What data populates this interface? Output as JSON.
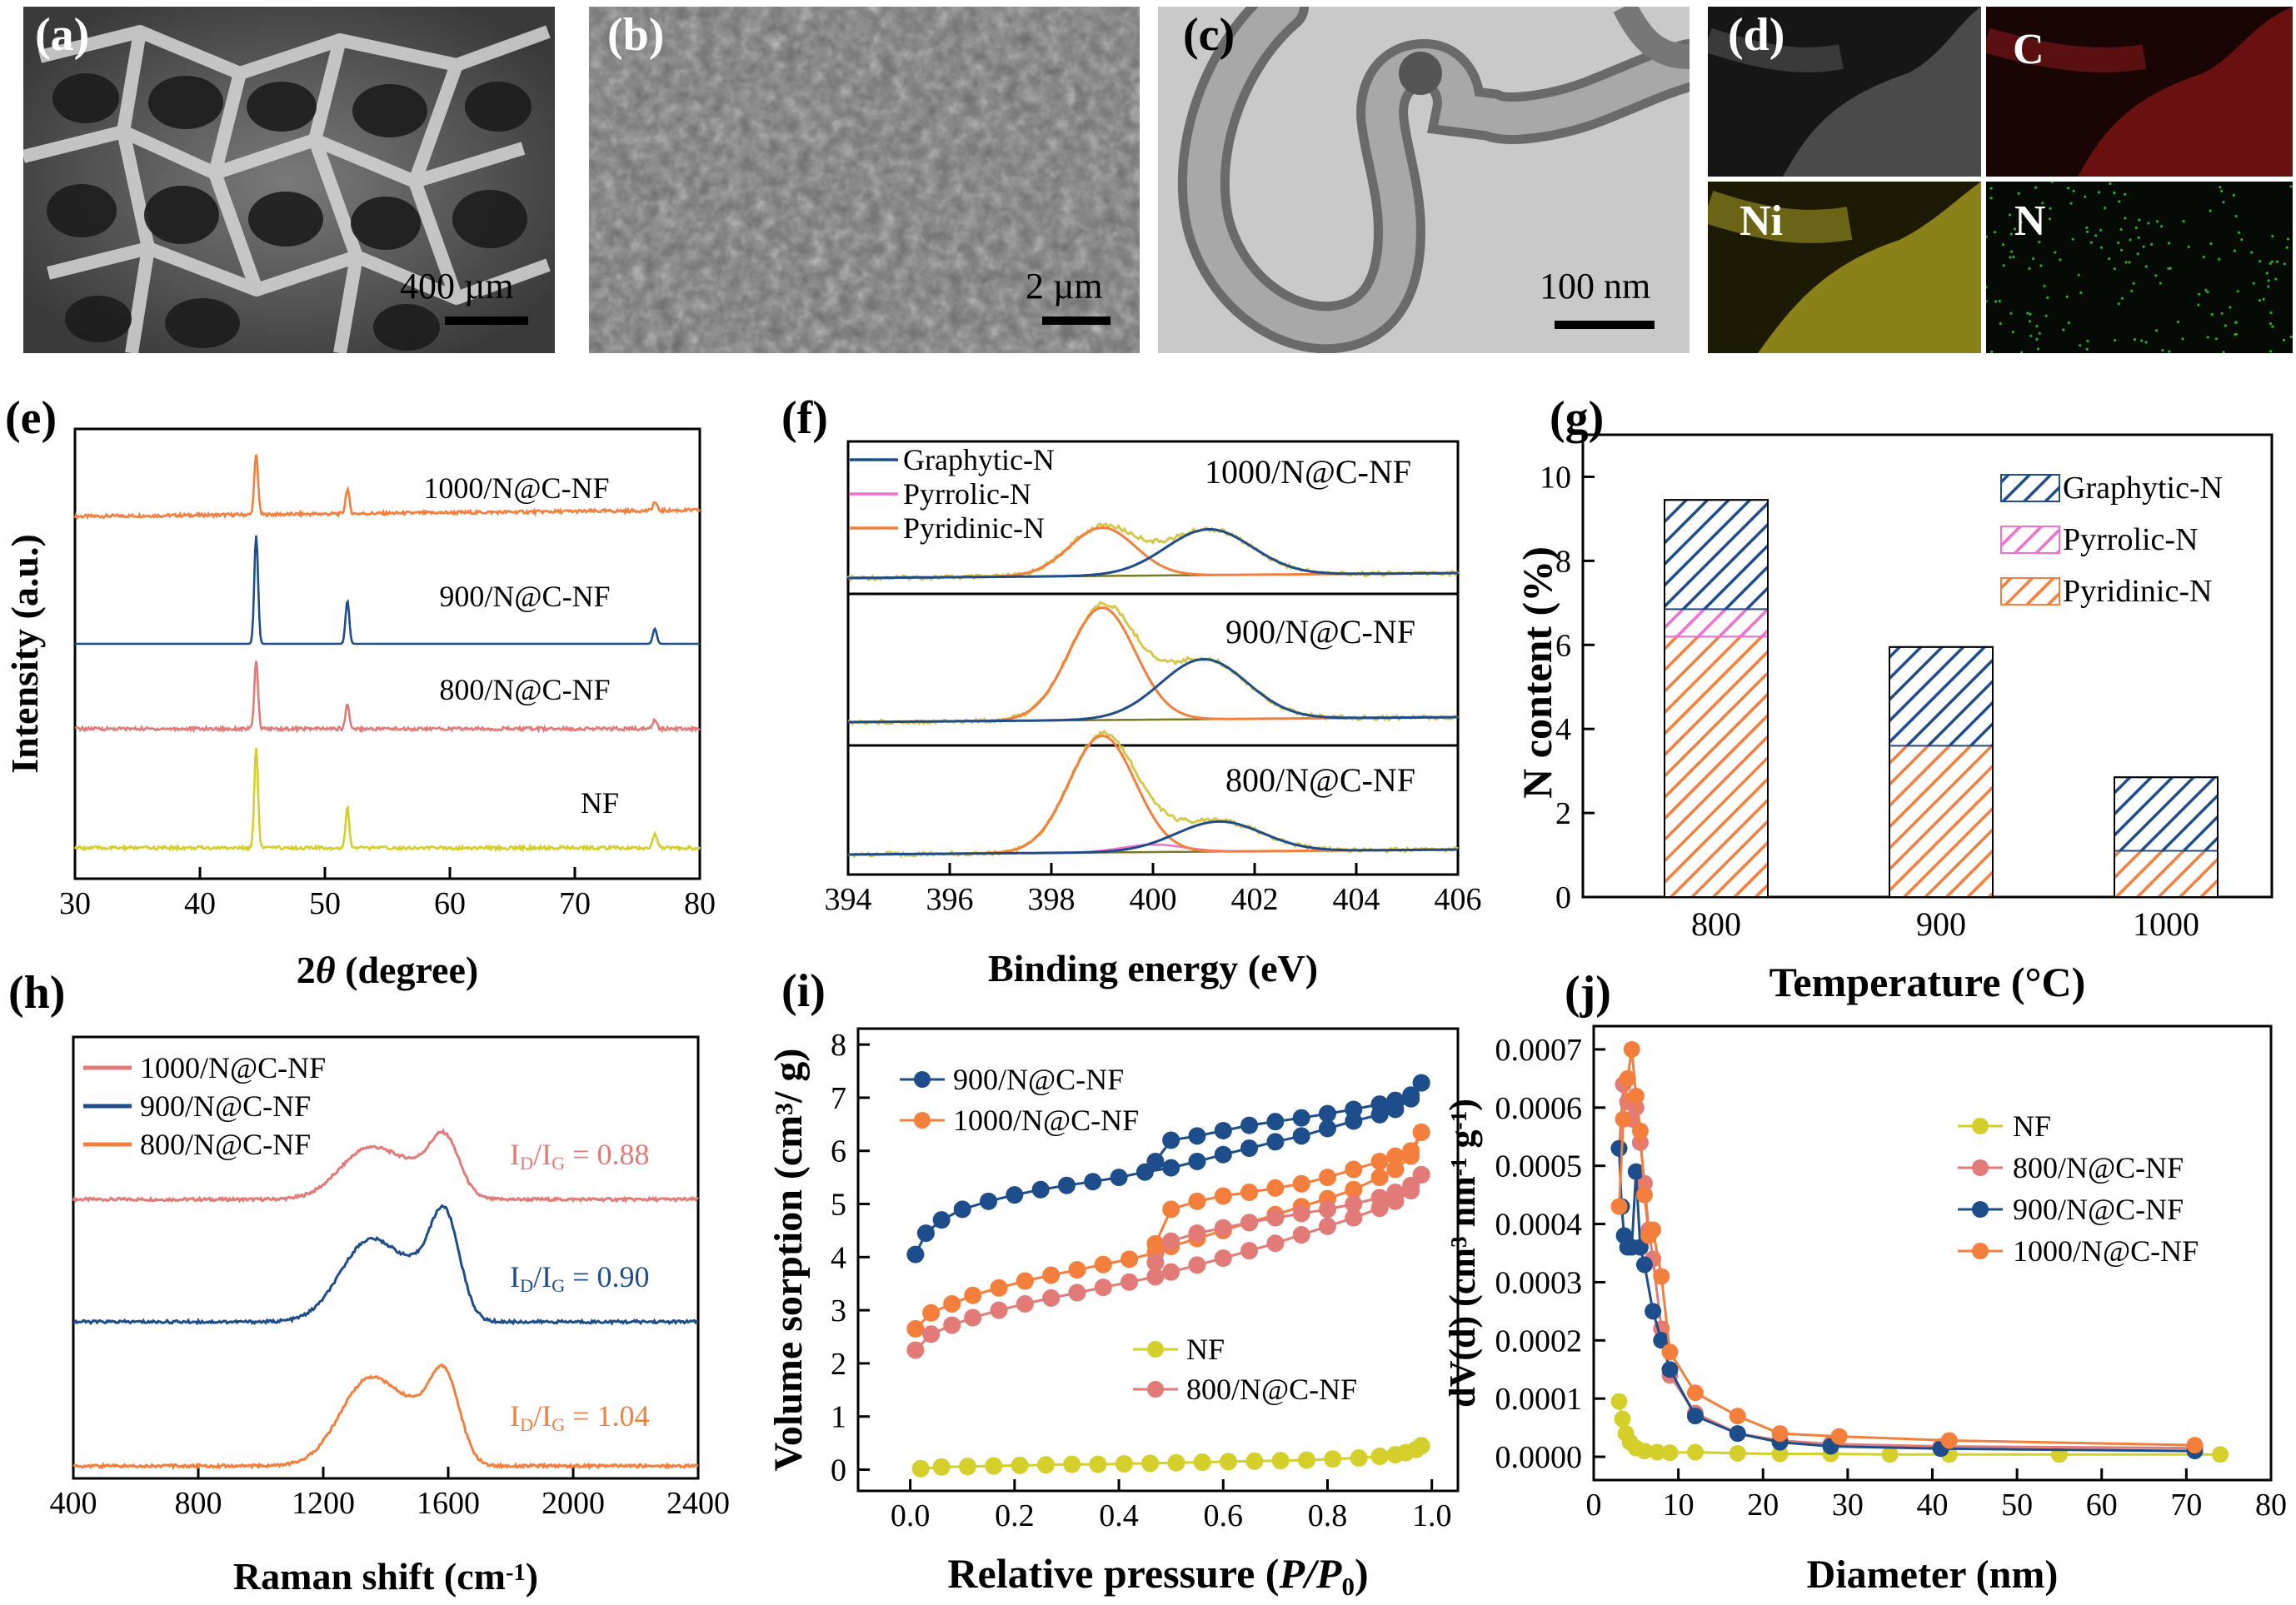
{
  "micrographs": [
    {
      "label": "(a)",
      "scale": "400 µm"
    },
    {
      "label": "(b)",
      "scale": "2 µm"
    },
    {
      "label": "(c)",
      "scale": "100 nm"
    }
  ],
  "mapping": {
    "label": "(d)",
    "elements": [
      "C",
      "Ni",
      "N"
    ]
  },
  "colors": {
    "nf": "#d4cf2a",
    "n800": "#e27a78",
    "n900": "#1d4d8b",
    "n1000": "#f47f3c",
    "pyrrolic": "#f06fd0",
    "baseline": "#7c7a24",
    "envelope": "#d4c84a"
  },
  "chart_data": [
    {
      "panel": "(e)",
      "type": "line",
      "xlabel": "2θ (degree)",
      "ylabel": "Intensity (a.u.)",
      "xlim": [
        30,
        80
      ],
      "xticks": [
        30,
        40,
        50,
        60,
        70,
        80
      ],
      "peaks": [
        44.5,
        51.8,
        76.4
      ],
      "series": [
        {
          "name": "1000/N@C-NF"
        },
        {
          "name": "900/N@C-NF"
        },
        {
          "name": "800/N@C-NF"
        },
        {
          "name": "NF"
        }
      ]
    },
    {
      "panel": "(f)",
      "type": "line",
      "xlabel": "Binding energy (eV)",
      "xlim": [
        394,
        406
      ],
      "xticks": [
        394,
        396,
        398,
        400,
        402,
        404,
        406
      ],
      "legend": [
        "Graphytic-N",
        "Pyrrolic-N",
        "Pyridinic-N"
      ],
      "subplots": [
        {
          "name": "1000/N@C-NF",
          "pyridinic_center": 399.0,
          "graphitic_center": 401.1
        },
        {
          "name": "900/N@C-NF",
          "pyridinic_center": 399.0,
          "graphitic_center": 401.0
        },
        {
          "name": "800/N@C-NF",
          "pyridinic_center": 399.0,
          "graphitic_center": 401.3,
          "pyrrolic_center": 400.0
        }
      ]
    },
    {
      "panel": "(g)",
      "type": "bar",
      "xlabel": "Temperature (°C)",
      "ylabel": "N content (%)",
      "ylim": [
        0,
        11
      ],
      "yticks": [
        0,
        2,
        4,
        6,
        8,
        10
      ],
      "categories": [
        "800",
        "900",
        "1000"
      ],
      "series": [
        {
          "name": "Pyridinic-N",
          "values": [
            6.2,
            3.6,
            1.1
          ]
        },
        {
          "name": "Pyrrolic-N",
          "values": [
            0.65,
            0,
            0
          ]
        },
        {
          "name": "Graphytic-N",
          "values": [
            2.6,
            2.35,
            1.75
          ]
        }
      ],
      "legend_order": [
        "Graphytic-N",
        "Pyrrolic-N",
        "Pyridinic-N"
      ]
    },
    {
      "panel": "(h)",
      "type": "line",
      "xlabel": "Raman shift (cm-1)",
      "xlim": [
        400,
        2400
      ],
      "xticks": [
        400,
        800,
        1200,
        1600,
        2000,
        2400
      ],
      "d_band": 1350,
      "g_band": 1590,
      "series": [
        {
          "name": "1000/N@C-NF",
          "ratio": "ID/IG = 0.88"
        },
        {
          "name": "900/N@C-NF",
          "ratio": "ID/IG = 0.90"
        },
        {
          "name": "800/N@C-NF",
          "ratio": "ID/IG = 1.04"
        }
      ]
    },
    {
      "panel": "(i)",
      "type": "scatter",
      "xlabel": "Relative pressure (P/P0)",
      "ylabel": "Volume sorption (cm3/ g)",
      "xlim": [
        -0.1,
        1.05
      ],
      "ylim": [
        -0.4,
        8.3
      ],
      "xticks": [
        0.0,
        0.2,
        0.4,
        0.6,
        0.8,
        1.0
      ],
      "yticks": [
        0,
        1,
        2,
        3,
        4,
        5,
        6,
        7,
        8
      ],
      "series": [
        {
          "name": "900/N@C-NF",
          "adsorption": [
            [
              0.01,
              4.05
            ],
            [
              0.03,
              4.45
            ],
            [
              0.06,
              4.7
            ],
            [
              0.1,
              4.9
            ],
            [
              0.15,
              5.05
            ],
            [
              0.2,
              5.17
            ],
            [
              0.25,
              5.27
            ],
            [
              0.3,
              5.35
            ],
            [
              0.35,
              5.42
            ],
            [
              0.4,
              5.5
            ],
            [
              0.45,
              5.6
            ],
            [
              0.5,
              5.68
            ],
            [
              0.55,
              5.8
            ],
            [
              0.6,
              5.93
            ],
            [
              0.65,
              6.05
            ],
            [
              0.7,
              6.17
            ],
            [
              0.75,
              6.28
            ],
            [
              0.8,
              6.42
            ],
            [
              0.85,
              6.56
            ],
            [
              0.9,
              6.68
            ],
            [
              0.93,
              6.78
            ],
            [
              0.96,
              6.98
            ],
            [
              0.98,
              7.28
            ]
          ],
          "desorption": [
            [
              0.98,
              7.28
            ],
            [
              0.96,
              7.05
            ],
            [
              0.93,
              6.95
            ],
            [
              0.9,
              6.88
            ],
            [
              0.85,
              6.78
            ],
            [
              0.8,
              6.7
            ],
            [
              0.75,
              6.62
            ],
            [
              0.7,
              6.55
            ],
            [
              0.65,
              6.48
            ],
            [
              0.6,
              6.38
            ],
            [
              0.55,
              6.28
            ],
            [
              0.5,
              6.2
            ],
            [
              0.47,
              5.8
            ]
          ]
        },
        {
          "name": "1000/N@C-NF",
          "adsorption": [
            [
              0.01,
              2.65
            ],
            [
              0.04,
              2.95
            ],
            [
              0.08,
              3.12
            ],
            [
              0.12,
              3.28
            ],
            [
              0.17,
              3.42
            ],
            [
              0.22,
              3.55
            ],
            [
              0.27,
              3.66
            ],
            [
              0.32,
              3.76
            ],
            [
              0.37,
              3.86
            ],
            [
              0.42,
              3.96
            ],
            [
              0.47,
              4.08
            ],
            [
              0.5,
              4.2
            ],
            [
              0.55,
              4.35
            ],
            [
              0.6,
              4.5
            ],
            [
              0.65,
              4.65
            ],
            [
              0.7,
              4.8
            ],
            [
              0.75,
              4.95
            ],
            [
              0.8,
              5.1
            ],
            [
              0.85,
              5.27
            ],
            [
              0.9,
              5.5
            ],
            [
              0.93,
              5.65
            ],
            [
              0.96,
              5.9
            ],
            [
              0.98,
              6.35
            ]
          ],
          "desorption": [
            [
              0.98,
              6.35
            ],
            [
              0.96,
              6.0
            ],
            [
              0.93,
              5.9
            ],
            [
              0.9,
              5.8
            ],
            [
              0.85,
              5.65
            ],
            [
              0.8,
              5.5
            ],
            [
              0.75,
              5.38
            ],
            [
              0.7,
              5.3
            ],
            [
              0.65,
              5.22
            ],
            [
              0.6,
              5.15
            ],
            [
              0.55,
              5.05
            ],
            [
              0.5,
              4.9
            ],
            [
              0.47,
              4.25
            ]
          ]
        },
        {
          "name": "800/N@C-NF",
          "adsorption": [
            [
              0.01,
              2.25
            ],
            [
              0.04,
              2.55
            ],
            [
              0.08,
              2.72
            ],
            [
              0.12,
              2.86
            ],
            [
              0.17,
              3.0
            ],
            [
              0.22,
              3.12
            ],
            [
              0.27,
              3.23
            ],
            [
              0.32,
              3.33
            ],
            [
              0.37,
              3.43
            ],
            [
              0.42,
              3.53
            ],
            [
              0.47,
              3.63
            ],
            [
              0.5,
              3.72
            ],
            [
              0.55,
              3.85
            ],
            [
              0.6,
              3.98
            ],
            [
              0.65,
              4.12
            ],
            [
              0.7,
              4.26
            ],
            [
              0.75,
              4.42
            ],
            [
              0.8,
              4.58
            ],
            [
              0.85,
              4.74
            ],
            [
              0.9,
              4.92
            ],
            [
              0.93,
              5.05
            ],
            [
              0.96,
              5.25
            ],
            [
              0.98,
              5.55
            ]
          ],
          "desorption": [
            [
              0.98,
              5.55
            ],
            [
              0.96,
              5.35
            ],
            [
              0.93,
              5.22
            ],
            [
              0.9,
              5.12
            ],
            [
              0.85,
              5.0
            ],
            [
              0.8,
              4.9
            ],
            [
              0.75,
              4.82
            ],
            [
              0.7,
              4.74
            ],
            [
              0.65,
              4.65
            ],
            [
              0.6,
              4.55
            ],
            [
              0.55,
              4.45
            ],
            [
              0.5,
              4.3
            ],
            [
              0.47,
              3.9
            ]
          ]
        },
        {
          "name": "NF",
          "adsorption": [
            [
              0.02,
              0.02
            ],
            [
              0.06,
              0.05
            ],
            [
              0.11,
              0.06
            ],
            [
              0.16,
              0.07
            ],
            [
              0.21,
              0.08
            ],
            [
              0.26,
              0.09
            ],
            [
              0.31,
              0.1
            ],
            [
              0.36,
              0.1
            ],
            [
              0.41,
              0.11
            ],
            [
              0.46,
              0.12
            ],
            [
              0.51,
              0.13
            ],
            [
              0.56,
              0.14
            ],
            [
              0.61,
              0.15
            ],
            [
              0.66,
              0.16
            ],
            [
              0.71,
              0.17
            ],
            [
              0.76,
              0.18
            ],
            [
              0.81,
              0.2
            ],
            [
              0.86,
              0.22
            ],
            [
              0.9,
              0.25
            ],
            [
              0.93,
              0.28
            ],
            [
              0.95,
              0.32
            ],
            [
              0.97,
              0.38
            ],
            [
              0.98,
              0.45
            ]
          ],
          "desorption": []
        }
      ]
    },
    {
      "panel": "(j)",
      "type": "line",
      "xlabel": "Diameter (nm)",
      "ylabel": "dV(d) (cm3 nm-1 g-1)",
      "xlim": [
        0,
        80
      ],
      "ylim": [
        -4e-05,
        0.00074
      ],
      "xticks": [
        0,
        10,
        20,
        30,
        40,
        50,
        60,
        70,
        80
      ],
      "yticks": [
        0.0,
        0.0001,
        0.0002,
        0.0003,
        0.0004,
        0.0005,
        0.0006,
        0.0007
      ],
      "ytick_labels": [
        "0.0000",
        "0.0001",
        "0.0002",
        "0.0003",
        "0.0004",
        "0.0005",
        "0.0006",
        "0.0007"
      ],
      "series": [
        {
          "name": "NF",
          "points": [
            [
              3.0,
              9.5e-05
            ],
            [
              3.4,
              6.5e-05
            ],
            [
              3.8,
              4e-05
            ],
            [
              4.3,
              2.5e-05
            ],
            [
              5.0,
              1.5e-05
            ],
            [
              6.0,
              1e-05
            ],
            [
              7.5,
              8e-06
            ],
            [
              9.0,
              7e-06
            ],
            [
              12,
              8e-06
            ],
            [
              17,
              6e-06
            ],
            [
              22,
              5e-06
            ],
            [
              28,
              5e-06
            ],
            [
              35,
              4e-06
            ],
            [
              42,
              4e-06
            ],
            [
              55,
              4e-06
            ],
            [
              74,
              4e-06
            ]
          ]
        },
        {
          "name": "800/N@C-NF",
          "points": [
            [
              3.0,
              0.00053
            ],
            [
              3.5,
              0.00064
            ],
            [
              4.0,
              0.00061
            ],
            [
              4.5,
              0.00058
            ],
            [
              5.0,
              0.0006
            ],
            [
              5.5,
              0.00054
            ],
            [
              6.0,
              0.00047
            ],
            [
              6.5,
              0.00039
            ],
            [
              7.0,
              0.00034
            ],
            [
              8.0,
              0.00022
            ],
            [
              9.0,
              0.00014
            ],
            [
              12,
              7.5e-05
            ],
            [
              17,
              4e-05
            ],
            [
              22,
              2.8e-05
            ],
            [
              28,
              2.2e-05
            ],
            [
              41,
              1.8e-05
            ],
            [
              71,
              1.5e-05
            ]
          ]
        },
        {
          "name": "900/N@C-NF",
          "points": [
            [
              3.0,
              0.00053
            ],
            [
              3.3,
              0.00043
            ],
            [
              3.6,
              0.00038
            ],
            [
              4.0,
              0.00036
            ],
            [
              4.5,
              0.00036
            ],
            [
              5.0,
              0.00049
            ],
            [
              5.5,
              0.00036
            ],
            [
              6.0,
              0.00033
            ],
            [
              7.0,
              0.00025
            ],
            [
              8.0,
              0.0002
            ],
            [
              9.0,
              0.00015
            ],
            [
              12,
              7e-05
            ],
            [
              17,
              4e-05
            ],
            [
              22,
              2.5e-05
            ],
            [
              28,
              1.8e-05
            ],
            [
              41,
              1.4e-05
            ],
            [
              71,
              1e-05
            ]
          ]
        },
        {
          "name": "1000/N@C-NF",
          "points": [
            [
              3.0,
              0.00043
            ],
            [
              3.5,
              0.00058
            ],
            [
              4.0,
              0.00065
            ],
            [
              4.5,
              0.0007
            ],
            [
              5.0,
              0.00062
            ],
            [
              5.5,
              0.00056
            ],
            [
              6.0,
              0.00045
            ],
            [
              6.5,
              0.00038
            ],
            [
              7.0,
              0.00039
            ],
            [
              8.0,
              0.00031
            ],
            [
              9.0,
              0.00018
            ],
            [
              12,
              0.00011
            ],
            [
              17,
              7e-05
            ],
            [
              22,
              4e-05
            ],
            [
              29,
              3.5e-05
            ],
            [
              42,
              2.8e-05
            ],
            [
              71,
              2e-05
            ]
          ]
        }
      ]
    }
  ]
}
